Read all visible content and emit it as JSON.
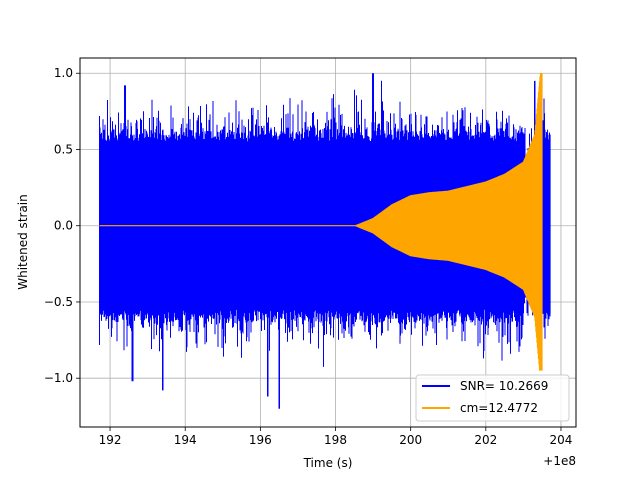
{
  "chart_data": {
    "type": "line",
    "xlabel": "Time (s)",
    "ylabel": "Whitened strain",
    "x_offset_label": "+1e8",
    "xlim": [
      191.2,
      204.4
    ],
    "ylim": [
      -1.32,
      1.1
    ],
    "x_ticks": [
      192,
      194,
      196,
      198,
      200,
      202,
      204
    ],
    "y_ticks": [
      -1.0,
      -0.5,
      0.0,
      0.5,
      1.0
    ],
    "x_tick_labels": [
      "192",
      "194",
      "196",
      "198",
      "200",
      "202",
      "204"
    ],
    "y_tick_labels": [
      "−1.0",
      "−0.5",
      "0.0",
      "0.5",
      "1.0"
    ],
    "grid": true,
    "legend_position": "lower-right",
    "series": [
      {
        "name": "SNR= 10.2669",
        "color": "#0000ff",
        "kind": "noise",
        "x_range": [
          191.72,
          203.72
        ],
        "typical_amplitude": [
          -0.55,
          0.55
        ],
        "max": 1.0,
        "min": -1.2
      },
      {
        "name": "cm=12.4772",
        "color": "#ffa500",
        "kind": "chirp",
        "x_range": [
          191.72,
          203.5
        ],
        "envelope": [
          [
            191.72,
            0.0
          ],
          [
            198.5,
            0.0
          ],
          [
            199.0,
            0.05
          ],
          [
            199.5,
            0.14
          ],
          [
            200.0,
            0.2
          ],
          [
            200.5,
            0.22
          ],
          [
            201.0,
            0.23
          ],
          [
            201.5,
            0.26
          ],
          [
            202.0,
            0.29
          ],
          [
            202.5,
            0.34
          ],
          [
            203.0,
            0.42
          ],
          [
            203.3,
            0.6
          ],
          [
            203.45,
            1.0
          ]
        ],
        "min": -0.95
      }
    ]
  }
}
